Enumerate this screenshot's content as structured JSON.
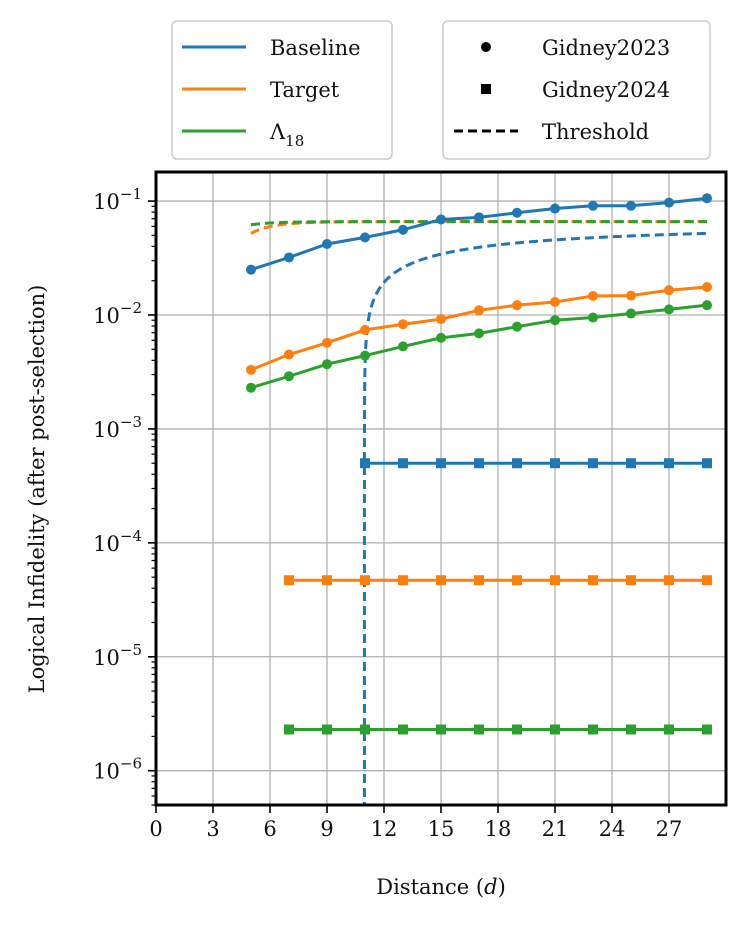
{
  "chart_data": {
    "type": "line",
    "yscale": "log",
    "xlabel": "Distance (d)",
    "ylabel": "Logical Infidelity (after post-selection)",
    "xlim": [
      0,
      30
    ],
    "ylim": [
      5e-07,
      0.18
    ],
    "x_ticks": [
      0,
      3,
      6,
      9,
      12,
      15,
      18,
      21,
      24,
      27
    ],
    "y_tick_exponents": [
      -6,
      -5,
      -4,
      -3,
      -2,
      -1
    ],
    "grid": true,
    "legend_colors": {
      "title": "",
      "entries": [
        {
          "label": "Baseline",
          "color": "#1f77b4"
        },
        {
          "label": "Target",
          "color": "#ff7f0e"
        },
        {
          "label": "Λ18",
          "label_base": "Λ",
          "label_sub": "18",
          "color": "#2ca02c"
        }
      ],
      "placement": "top-left-outside"
    },
    "legend_styles": {
      "entries": [
        {
          "label": "Gidney2023",
          "marker": "circle"
        },
        {
          "label": "Gidney2024",
          "marker": "square"
        },
        {
          "label": "Threshold",
          "marker": "dashed-line"
        }
      ],
      "placement": "top-right-outside"
    },
    "series": [
      {
        "name": "Baseline Gidney2023",
        "color": "#1f77b4",
        "marker": "circle",
        "x": [
          5,
          7,
          9,
          11,
          13,
          15,
          17,
          19,
          21,
          23,
          25,
          27,
          29
        ],
        "y": [
          0.025,
          0.032,
          0.042,
          0.048,
          0.056,
          0.069,
          0.072,
          0.079,
          0.086,
          0.091,
          0.091,
          0.097,
          0.106
        ]
      },
      {
        "name": "Target Gidney2023",
        "color": "#ff7f0e",
        "marker": "circle",
        "x": [
          5,
          7,
          9,
          11,
          13,
          15,
          17,
          19,
          21,
          23,
          25,
          27,
          29
        ],
        "y": [
          0.0033,
          0.0045,
          0.0057,
          0.0074,
          0.0083,
          0.0092,
          0.011,
          0.0122,
          0.013,
          0.0147,
          0.0148,
          0.0165,
          0.0176
        ]
      },
      {
        "name": "Λ18 Gidney2023",
        "color": "#2ca02c",
        "marker": "circle",
        "x": [
          5,
          7,
          9,
          11,
          13,
          15,
          17,
          19,
          21,
          23,
          25,
          27,
          29
        ],
        "y": [
          0.0023,
          0.0029,
          0.0037,
          0.0044,
          0.0053,
          0.0063,
          0.0069,
          0.0079,
          0.009,
          0.0095,
          0.0103,
          0.0112,
          0.0122
        ]
      },
      {
        "name": "Baseline Gidney2024",
        "color": "#1f77b4",
        "marker": "square",
        "x": [
          11,
          13,
          15,
          17,
          19,
          21,
          23,
          25,
          27,
          29
        ],
        "y": [
          0.0005,
          0.0005,
          0.0005,
          0.0005,
          0.0005,
          0.0005,
          0.0005,
          0.0005,
          0.0005,
          0.0005
        ]
      },
      {
        "name": "Target Gidney2024",
        "color": "#ff7f0e",
        "marker": "square",
        "x": [
          7,
          9,
          11,
          13,
          15,
          17,
          19,
          21,
          23,
          25,
          27,
          29
        ],
        "y": [
          4.7e-05,
          4.7e-05,
          4.7e-05,
          4.7e-05,
          4.7e-05,
          4.7e-05,
          4.7e-05,
          4.7e-05,
          4.7e-05,
          4.7e-05,
          4.7e-05,
          4.7e-05
        ]
      },
      {
        "name": "Λ18 Gidney2024",
        "color": "#2ca02c",
        "marker": "square",
        "x": [
          7,
          9,
          11,
          13,
          15,
          17,
          19,
          21,
          23,
          25,
          27,
          29
        ],
        "y": [
          2.3e-06,
          2.3e-06,
          2.3e-06,
          2.3e-06,
          2.3e-06,
          2.3e-06,
          2.3e-06,
          2.3e-06,
          2.3e-06,
          2.3e-06,
          2.3e-06,
          2.3e-06
        ]
      }
    ],
    "thresholds": [
      {
        "name": "Baseline Threshold",
        "color": "#1f77b4",
        "asymptote": 0.066,
        "d0": 10.97,
        "kind": "pole"
      },
      {
        "name": "Target Threshold",
        "color": "#ff7f0e",
        "asymptote": 0.066,
        "x_start": 5,
        "y_start": 0.052,
        "decay": 0.8
      },
      {
        "name": "Λ18 Threshold",
        "color": "#2ca02c",
        "asymptote": 0.066,
        "x_start": 5,
        "y_start": 0.062,
        "decay": 0.8
      }
    ]
  }
}
